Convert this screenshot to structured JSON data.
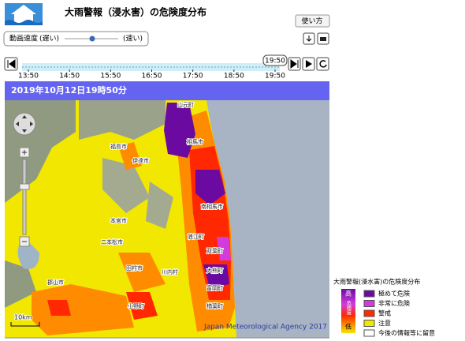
{
  "header": {
    "title": "大雨警報（浸水害）の危険度分布",
    "help_button": "使い方"
  },
  "speed": {
    "label": "動画速度",
    "slow": "(遅い)",
    "fast": "(速い)"
  },
  "timeline": {
    "ticks": [
      "13:50",
      "14:50",
      "15:50",
      "16:50",
      "17:50",
      "18:50",
      "19:50"
    ],
    "current": "19:50"
  },
  "banner": "2019年10月12日19時50分",
  "map": {
    "places": [
      "福島市",
      "伊達市",
      "相馬市",
      "南相馬市",
      "二本松市",
      "郡山市",
      "浪江町",
      "双葉町",
      "大熊町",
      "富岡町",
      "楢葉町",
      "川内村",
      "田村市",
      "小野町",
      "本宮市",
      "山元町"
    ],
    "scale": "10km",
    "credit": "Japan Meteorological Agency 2017"
  },
  "legend": {
    "title": "大雨警報(浸水害)の危険度分布",
    "high": "高",
    "mid": "危険度",
    "low": "低",
    "items": [
      {
        "label": "極めて危険",
        "color": "#6a0aa0"
      },
      {
        "label": "非常に危険",
        "color": "#d23cdc"
      },
      {
        "label": "警戒",
        "color": "#ff2800"
      },
      {
        "label": "注意",
        "color": "#f2e700"
      },
      {
        "label": "今後の情報等に留意",
        "color": "#ffffff"
      }
    ]
  }
}
